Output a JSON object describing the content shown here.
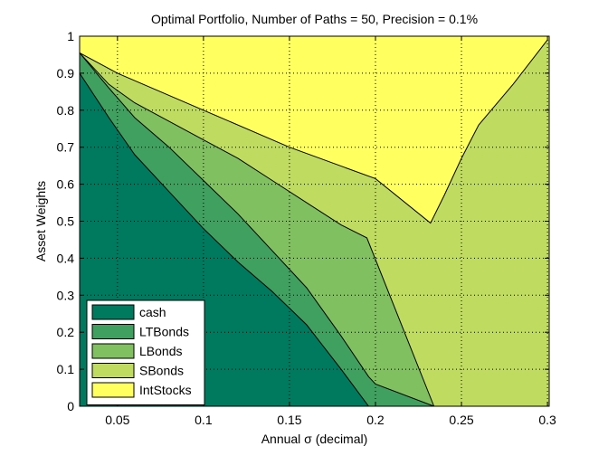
{
  "chart_data": {
    "type": "area",
    "title": "Optimal Portfolio, Number of Paths = 50, Precision = 0.1%",
    "xlabel": "Annual σ (decimal)",
    "ylabel": "Asset Weights",
    "xlim": [
      0.028,
      0.301
    ],
    "ylim": [
      0,
      1
    ],
    "xticks": [
      "0.05",
      "0.1",
      "0.15",
      "0.2",
      "0.25",
      "0.3"
    ],
    "xtick_values": [
      0.05,
      0.1,
      0.15,
      0.2,
      0.25,
      0.3
    ],
    "yticks": [
      "0",
      "0.1",
      "0.2",
      "0.3",
      "0.4",
      "0.5",
      "0.6",
      "0.7",
      "0.8",
      "0.9",
      "1"
    ],
    "ytick_values": [
      0,
      0.1,
      0.2,
      0.3,
      0.4,
      0.5,
      0.6,
      0.7,
      0.8,
      0.9,
      1
    ],
    "grid": true,
    "legend_position": "bottom-left",
    "stacked": true,
    "series": [
      {
        "name": "cash",
        "color": "#007a5e",
        "points": [
          [
            0.028,
            0.9
          ],
          [
            0.045,
            0.78
          ],
          [
            0.06,
            0.68
          ],
          [
            0.08,
            0.58
          ],
          [
            0.1,
            0.48
          ],
          [
            0.12,
            0.39
          ],
          [
            0.14,
            0.31
          ],
          [
            0.16,
            0.22
          ],
          [
            0.18,
            0.1
          ],
          [
            0.196,
            0.0
          ]
        ]
      },
      {
        "name": "LTBonds",
        "color": "#40a060",
        "points": [
          [
            0.028,
            0.955
          ],
          [
            0.045,
            0.86
          ],
          [
            0.06,
            0.78
          ],
          [
            0.08,
            0.7
          ],
          [
            0.1,
            0.61
          ],
          [
            0.12,
            0.52
          ],
          [
            0.14,
            0.42
          ],
          [
            0.16,
            0.32
          ],
          [
            0.18,
            0.19
          ],
          [
            0.196,
            0.08
          ],
          [
            0.2,
            0.06
          ],
          [
            0.234,
            0.0
          ]
        ]
      },
      {
        "name": "LBonds",
        "color": "#80c060",
        "points": [
          [
            0.028,
            0.955
          ],
          [
            0.045,
            0.87
          ],
          [
            0.06,
            0.82
          ],
          [
            0.08,
            0.77
          ],
          [
            0.1,
            0.72
          ],
          [
            0.12,
            0.67
          ],
          [
            0.14,
            0.61
          ],
          [
            0.16,
            0.55
          ],
          [
            0.18,
            0.49
          ],
          [
            0.195,
            0.455
          ],
          [
            0.234,
            0.0
          ]
        ]
      },
      {
        "name": "SBonds",
        "color": "#c0dc60",
        "points": [
          [
            0.028,
            0.955
          ],
          [
            0.05,
            0.9
          ],
          [
            0.1,
            0.8
          ],
          [
            0.15,
            0.7
          ],
          [
            0.2,
            0.615
          ],
          [
            0.232,
            0.495
          ],
          [
            0.24,
            0.57
          ],
          [
            0.25,
            0.67
          ],
          [
            0.26,
            0.76
          ],
          [
            0.28,
            0.87
          ],
          [
            0.3,
            0.99
          ]
        ]
      },
      {
        "name": "IntStocks",
        "color": "#ffff60",
        "points": [
          [
            0.028,
            1.0
          ],
          [
            0.3,
            1.0
          ]
        ]
      }
    ]
  }
}
